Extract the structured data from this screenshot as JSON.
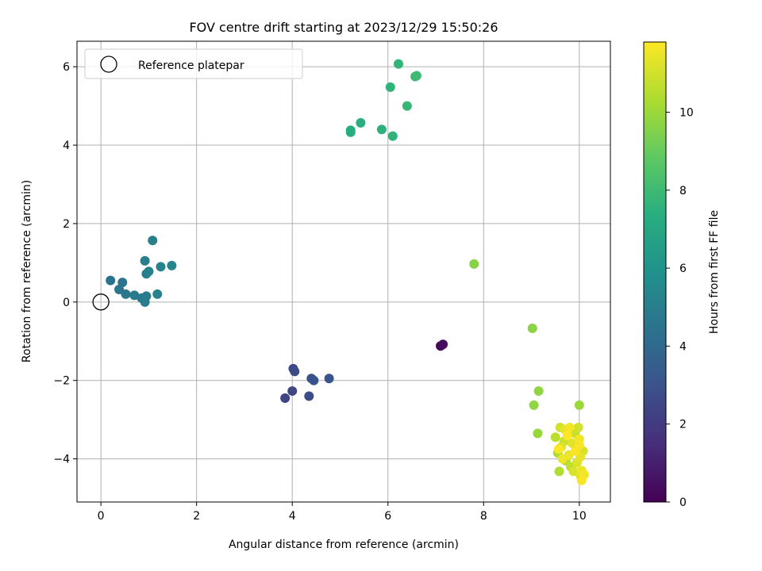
{
  "chart_data": {
    "type": "scatter",
    "title": "FOV centre drift starting at 2023/12/29 15:50:26",
    "xlabel": "Angular distance from reference (arcmin)",
    "ylabel": "Rotation from reference (arcmin)",
    "xlim": [
      -0.5,
      10.65
    ],
    "ylim": [
      -5.1,
      6.65
    ],
    "xticks": [
      0,
      2,
      4,
      6,
      8,
      10
    ],
    "yticks": [
      -4,
      -2,
      0,
      2,
      4,
      6
    ],
    "grid": true,
    "legend": {
      "location": "upper-left",
      "entries": [
        "Reference platepar"
      ]
    },
    "reference_point": {
      "x": 0,
      "y": 0,
      "label": "Reference platepar"
    },
    "colorbar": {
      "label": "Hours from first FF file",
      "colormap": "viridis",
      "range": [
        0,
        11.8
      ],
      "ticks": [
        0,
        2,
        4,
        6,
        8,
        10
      ]
    },
    "points": [
      {
        "x": 7.1,
        "y": -1.12,
        "c": 0.2
      },
      {
        "x": 7.15,
        "y": -1.08,
        "c": 0.4
      },
      {
        "x": 3.85,
        "y": -2.45,
        "c": 2.4
      },
      {
        "x": 4.0,
        "y": -2.27,
        "c": 2.5
      },
      {
        "x": 4.02,
        "y": -1.7,
        "c": 2.6
      },
      {
        "x": 4.05,
        "y": -1.77,
        "c": 2.7
      },
      {
        "x": 4.35,
        "y": -2.4,
        "c": 2.8
      },
      {
        "x": 4.4,
        "y": -1.95,
        "c": 2.9
      },
      {
        "x": 4.45,
        "y": -2.0,
        "c": 3.0
      },
      {
        "x": 4.77,
        "y": -1.95,
        "c": 3.1
      },
      {
        "x": 0.2,
        "y": 0.55,
        "c": 4.5
      },
      {
        "x": 0.38,
        "y": 0.32,
        "c": 4.6
      },
      {
        "x": 0.45,
        "y": 0.5,
        "c": 4.6
      },
      {
        "x": 0.52,
        "y": 0.2,
        "c": 4.7
      },
      {
        "x": 0.7,
        "y": 0.17,
        "c": 4.8
      },
      {
        "x": 0.85,
        "y": 0.1,
        "c": 4.8
      },
      {
        "x": 0.92,
        "y": 0.0,
        "c": 4.9
      },
      {
        "x": 0.95,
        "y": 0.15,
        "c": 4.9
      },
      {
        "x": 0.92,
        "y": 1.05,
        "c": 5.0
      },
      {
        "x": 0.95,
        "y": 0.72,
        "c": 5.0
      },
      {
        "x": 1.0,
        "y": 0.78,
        "c": 5.1
      },
      {
        "x": 1.08,
        "y": 1.57,
        "c": 5.1
      },
      {
        "x": 1.18,
        "y": 0.2,
        "c": 5.2
      },
      {
        "x": 1.25,
        "y": 0.9,
        "c": 5.2
      },
      {
        "x": 1.48,
        "y": 0.93,
        "c": 5.3
      },
      {
        "x": 5.22,
        "y": 4.33,
        "c": 7.3
      },
      {
        "x": 5.22,
        "y": 4.38,
        "c": 7.3
      },
      {
        "x": 5.43,
        "y": 4.57,
        "c": 7.4
      },
      {
        "x": 5.87,
        "y": 4.4,
        "c": 7.5
      },
      {
        "x": 6.05,
        "y": 5.48,
        "c": 7.6
      },
      {
        "x": 6.1,
        "y": 4.23,
        "c": 7.6
      },
      {
        "x": 6.22,
        "y": 6.07,
        "c": 7.7
      },
      {
        "x": 6.4,
        "y": 5.0,
        "c": 7.8
      },
      {
        "x": 6.57,
        "y": 5.75,
        "c": 7.9
      },
      {
        "x": 6.6,
        "y": 5.77,
        "c": 8.0
      },
      {
        "x": 7.8,
        "y": 0.97,
        "c": 9.6
      },
      {
        "x": 9.02,
        "y": -0.67,
        "c": 9.7
      },
      {
        "x": 9.05,
        "y": -2.63,
        "c": 9.8
      },
      {
        "x": 9.13,
        "y": -3.35,
        "c": 9.9
      },
      {
        "x": 9.15,
        "y": -2.27,
        "c": 9.8
      },
      {
        "x": 10.0,
        "y": -2.63,
        "c": 10.0
      },
      {
        "x": 9.5,
        "y": -3.45,
        "c": 10.6
      },
      {
        "x": 9.55,
        "y": -3.85,
        "c": 10.3
      },
      {
        "x": 9.58,
        "y": -4.32,
        "c": 10.4
      },
      {
        "x": 9.6,
        "y": -3.2,
        "c": 11.0
      },
      {
        "x": 9.62,
        "y": -3.7,
        "c": 11.2
      },
      {
        "x": 9.68,
        "y": -3.55,
        "c": 10.9
      },
      {
        "x": 9.7,
        "y": -3.25,
        "c": 11.4
      },
      {
        "x": 9.72,
        "y": -4.05,
        "c": 10.5
      },
      {
        "x": 9.78,
        "y": -3.9,
        "c": 11.5
      },
      {
        "x": 9.8,
        "y": -3.2,
        "c": 11.6
      },
      {
        "x": 9.82,
        "y": -4.2,
        "c": 10.7
      },
      {
        "x": 9.85,
        "y": -3.6,
        "c": 11.3
      },
      {
        "x": 9.88,
        "y": -4.32,
        "c": 11.1
      },
      {
        "x": 9.9,
        "y": -3.35,
        "c": 10.8
      },
      {
        "x": 9.92,
        "y": -3.8,
        "c": 11.7
      },
      {
        "x": 9.95,
        "y": -4.1,
        "c": 11.2
      },
      {
        "x": 9.98,
        "y": -3.2,
        "c": 11.0
      },
      {
        "x": 10.0,
        "y": -3.5,
        "c": 11.6
      },
      {
        "x": 10.02,
        "y": -3.95,
        "c": 11.4
      },
      {
        "x": 10.03,
        "y": -4.45,
        "c": 11.3
      },
      {
        "x": 10.05,
        "y": -4.55,
        "c": 11.7
      },
      {
        "x": 10.05,
        "y": -4.3,
        "c": 11.5
      },
      {
        "x": 10.08,
        "y": -3.8,
        "c": 11.1
      },
      {
        "x": 10.1,
        "y": -4.4,
        "c": 11.6
      },
      {
        "x": 9.57,
        "y": -3.75,
        "c": 11.8
      },
      {
        "x": 9.75,
        "y": -3.4,
        "c": 11.8
      },
      {
        "x": 10.0,
        "y": -3.65,
        "c": 11.7
      },
      {
        "x": 9.65,
        "y": -4.0,
        "c": 11.5
      }
    ]
  }
}
